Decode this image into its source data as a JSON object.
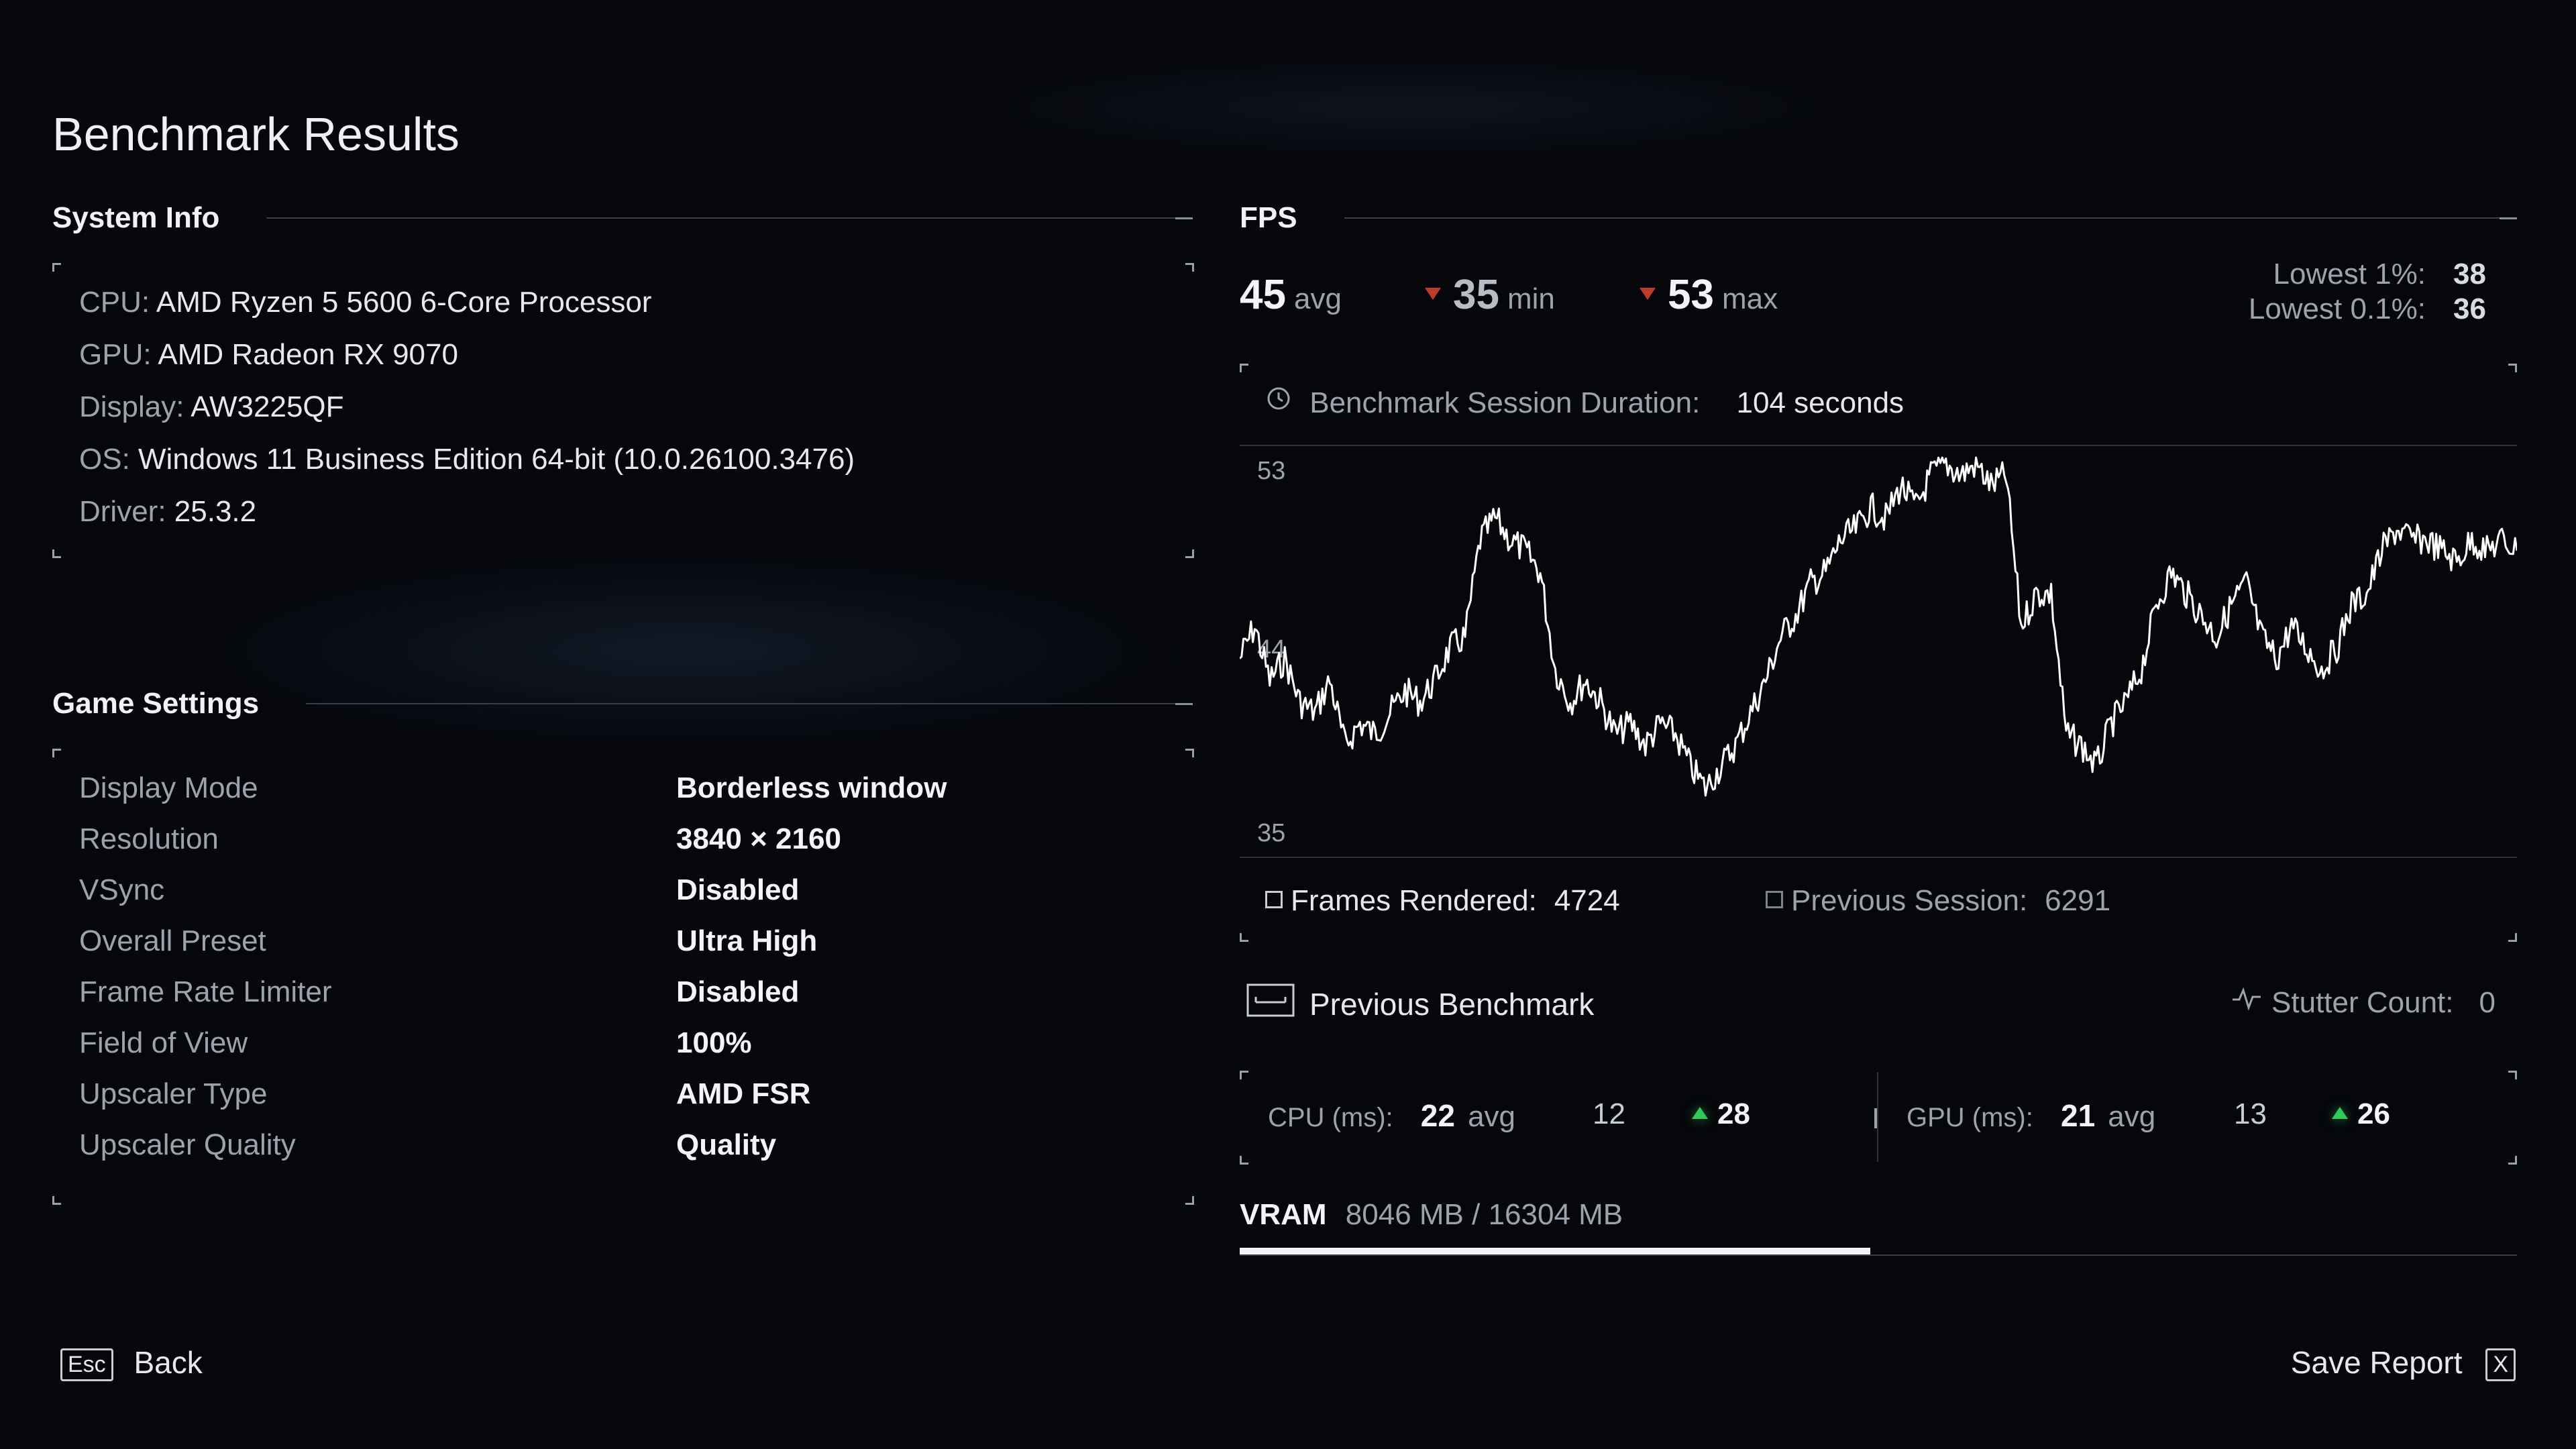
{
  "title": "Benchmark Results",
  "system_info": {
    "heading": "System Info",
    "rows": [
      {
        "key": "CPU:",
        "value": "AMD Ryzen 5 5600 6-Core Processor"
      },
      {
        "key": "GPU:",
        "value": "AMD Radeon RX 9070"
      },
      {
        "key": "Display:",
        "value": "AW3225QF"
      },
      {
        "key": "OS:",
        "value": "Windows 11 Business Edition 64-bit (10.0.26100.3476)"
      },
      {
        "key": "Driver:",
        "value": "25.3.2"
      }
    ]
  },
  "game_settings": {
    "heading": "Game Settings",
    "rows": [
      {
        "key": "Display Mode",
        "value": "Borderless window"
      },
      {
        "key": "Resolution",
        "value": "3840 × 2160"
      },
      {
        "key": "VSync",
        "value": "Disabled"
      },
      {
        "key": "Overall Preset",
        "value": "Ultra High"
      },
      {
        "key": "Frame Rate Limiter",
        "value": "Disabled"
      },
      {
        "key": "Field of View",
        "value": "100%"
      },
      {
        "key": "Upscaler Type",
        "value": "AMD FSR"
      },
      {
        "key": "Upscaler Quality",
        "value": "Quality"
      }
    ]
  },
  "fps": {
    "heading": "FPS",
    "avg": "45",
    "avg_label": "avg",
    "min": "35",
    "min_label": "min",
    "max": "53",
    "max_label": "max",
    "lowest1_label": "Lowest 1%:",
    "lowest1": "38",
    "lowest01_label": "Lowest 0.1%:",
    "lowest01": "36",
    "duration_label": "Benchmark Session Duration:",
    "duration_value": "104 seconds",
    "frames_label": "Frames Rendered:",
    "frames_value": "4724",
    "prev_session_label": "Previous Session:",
    "prev_session_value": "6291"
  },
  "chart_data": {
    "type": "line",
    "y_ticks": [
      "53",
      "44",
      "35"
    ],
    "ylim": [
      35,
      53
    ],
    "xlim": [
      0,
      104
    ],
    "grid": false,
    "series": [
      {
        "values": [
          44,
          45.5,
          43,
          44,
          42,
          41.5,
          43,
          40,
          41,
          40.5,
          41.5,
          42.5,
          42,
          43,
          44.5,
          45,
          49.5,
          50.5,
          49.5,
          49,
          48,
          43.5,
          42,
          43,
          42,
          40.5,
          41,
          40,
          41,
          40.5,
          39,
          38,
          39,
          40,
          41.5,
          43,
          45,
          46,
          47.5,
          48,
          49.5,
          50,
          51,
          50.5,
          52,
          51,
          52.5,
          53,
          52.5,
          53,
          52,
          52.5,
          45.5,
          47,
          47,
          40.5,
          40,
          39,
          41,
          42,
          43.5,
          46.5,
          48,
          47,
          46,
          45,
          46.5,
          47.5,
          45,
          44,
          45.5,
          44.5,
          43.5,
          44.5,
          46.5,
          47,
          49,
          50,
          49.5,
          49.5,
          49,
          48.5,
          49.5,
          49,
          49.5,
          49
        ]
      }
    ],
    "color": "#ffffff"
  },
  "previous_benchmark": {
    "label": "Previous Benchmark",
    "stutter_label": "Stutter Count:",
    "stutter_value": "0"
  },
  "frametimes": {
    "cpu_label": "CPU (ms):",
    "cpu_avg": "22",
    "cpu_avg_label": "avg",
    "cpu_min": "12",
    "cpu_max": "28",
    "gpu_label": "GPU (ms):",
    "gpu_avg": "21",
    "gpu_avg_label": "avg",
    "gpu_min": "13",
    "gpu_max": "26"
  },
  "vram": {
    "label": "VRAM",
    "value": "8046 MB / 16304 MB",
    "used_fraction": 0.4935
  },
  "footer": {
    "back_key": "Esc",
    "back_label": "Back",
    "save_label": "Save Report",
    "save_key": "X"
  },
  "colors": {
    "accent_red": "#c0392b",
    "accent_green": "#2ecc57",
    "text_bright": "#f3f4f6",
    "text_muted": "#9ea3aa"
  }
}
